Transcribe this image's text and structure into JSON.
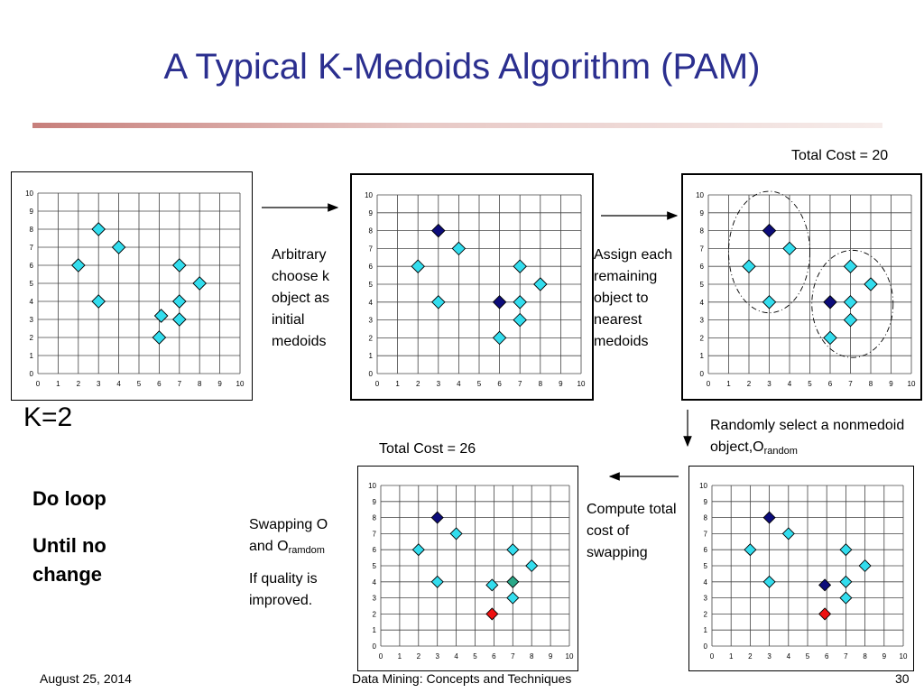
{
  "title": "A Typical K-Medoids Algorithm (PAM)",
  "k_label": "K=2",
  "steps": {
    "arbitrary": "Arbitrary choose k object as initial medoids",
    "assign": "Assign each remaining object to nearest medoids",
    "randomly_prefix": "Randomly select a nonmedoid object,O",
    "randomly_sub": "random",
    "compute": "Compute total cost of swapping",
    "swap_prefix": "Swapping O and O",
    "swap_sub": "ramdom",
    "quality": "If quality is improved."
  },
  "costs": {
    "top": "Total Cost = 20",
    "bottom": "Total Cost = 26"
  },
  "loop": {
    "do": "Do loop",
    "until": "Until no change"
  },
  "footer": {
    "date": "August 25, 2014",
    "course": "Data Mining: Concepts and Techniques",
    "page": "30"
  },
  "colors": {
    "object": "#33ddee",
    "medoid": "#0c0c7a",
    "swap_candidate": "#ee1111",
    "former_medoid": "#2aa888"
  },
  "chart_data": [
    {
      "type": "scatter",
      "id": "initial-data",
      "xlim": [
        0,
        10
      ],
      "ylim": [
        0,
        10
      ],
      "grid": true,
      "ticks": [
        "0",
        "1",
        "2",
        "3",
        "4",
        "5",
        "6",
        "7",
        "8",
        "9",
        "10"
      ],
      "points": [
        {
          "x": 2,
          "y": 6,
          "role": "object"
        },
        {
          "x": 3,
          "y": 8,
          "role": "object"
        },
        {
          "x": 3,
          "y": 4,
          "role": "object"
        },
        {
          "x": 4,
          "y": 7,
          "role": "object"
        },
        {
          "x": 6,
          "y": 2,
          "role": "object"
        },
        {
          "x": 6.1,
          "y": 3.2,
          "role": "object"
        },
        {
          "x": 7,
          "y": 6,
          "role": "object"
        },
        {
          "x": 7,
          "y": 4,
          "role": "object"
        },
        {
          "x": 7,
          "y": 3,
          "role": "object"
        },
        {
          "x": 8,
          "y": 5,
          "role": "object"
        }
      ]
    },
    {
      "type": "scatter",
      "id": "initial-medoids",
      "xlim": [
        0,
        10
      ],
      "ylim": [
        0,
        10
      ],
      "grid": true,
      "ticks": [
        "0",
        "1",
        "2",
        "3",
        "4",
        "5",
        "6",
        "7",
        "8",
        "9",
        "10"
      ],
      "points": [
        {
          "x": 2,
          "y": 6,
          "role": "object"
        },
        {
          "x": 3,
          "y": 8,
          "role": "medoid"
        },
        {
          "x": 3,
          "y": 4,
          "role": "object"
        },
        {
          "x": 4,
          "y": 7,
          "role": "object"
        },
        {
          "x": 6,
          "y": 4,
          "role": "medoid"
        },
        {
          "x": 6,
          "y": 2,
          "role": "object"
        },
        {
          "x": 7,
          "y": 6,
          "role": "object"
        },
        {
          "x": 7,
          "y": 4,
          "role": "object"
        },
        {
          "x": 7,
          "y": 3,
          "role": "object"
        },
        {
          "x": 8,
          "y": 5,
          "role": "object"
        }
      ]
    },
    {
      "type": "scatter",
      "id": "assigned-clusters",
      "xlim": [
        0,
        10
      ],
      "ylim": [
        0,
        10
      ],
      "grid": true,
      "ticks": [
        "0",
        "1",
        "2",
        "3",
        "4",
        "5",
        "6",
        "7",
        "8",
        "9",
        "10"
      ],
      "clusters": [
        {
          "cx": 3,
          "cy": 6.8,
          "rx": 2.0,
          "ry": 3.4
        },
        {
          "cx": 7.1,
          "cy": 3.9,
          "rx": 2.0,
          "ry": 3.0
        }
      ],
      "points": [
        {
          "x": 2,
          "y": 6,
          "role": "object"
        },
        {
          "x": 3,
          "y": 8,
          "role": "medoid"
        },
        {
          "x": 3,
          "y": 4,
          "role": "object"
        },
        {
          "x": 4,
          "y": 7,
          "role": "object"
        },
        {
          "x": 6,
          "y": 4,
          "role": "medoid"
        },
        {
          "x": 6,
          "y": 2,
          "role": "object"
        },
        {
          "x": 7,
          "y": 6,
          "role": "object"
        },
        {
          "x": 7,
          "y": 4,
          "role": "object"
        },
        {
          "x": 7,
          "y": 3,
          "role": "object"
        },
        {
          "x": 8,
          "y": 5,
          "role": "object"
        }
      ]
    },
    {
      "type": "scatter",
      "id": "random-nonmedoid",
      "xlim": [
        0,
        10
      ],
      "ylim": [
        0,
        10
      ],
      "grid": true,
      "ticks": [
        "0",
        "1",
        "2",
        "3",
        "4",
        "5",
        "6",
        "7",
        "8",
        "9",
        "10"
      ],
      "points": [
        {
          "x": 2,
          "y": 6,
          "role": "object"
        },
        {
          "x": 3,
          "y": 8,
          "role": "medoid"
        },
        {
          "x": 3,
          "y": 4,
          "role": "object"
        },
        {
          "x": 4,
          "y": 7,
          "role": "object"
        },
        {
          "x": 5.9,
          "y": 3.8,
          "role": "medoid"
        },
        {
          "x": 5.9,
          "y": 2,
          "role": "swap_candidate"
        },
        {
          "x": 7,
          "y": 6,
          "role": "object"
        },
        {
          "x": 7,
          "y": 4,
          "role": "object"
        },
        {
          "x": 7,
          "y": 3,
          "role": "object"
        },
        {
          "x": 8,
          "y": 5,
          "role": "object"
        }
      ]
    },
    {
      "type": "scatter",
      "id": "after-swap",
      "xlim": [
        0,
        10
      ],
      "ylim": [
        0,
        10
      ],
      "grid": true,
      "ticks": [
        "0",
        "1",
        "2",
        "3",
        "4",
        "5",
        "6",
        "7",
        "8",
        "9",
        "10"
      ],
      "points": [
        {
          "x": 2,
          "y": 6,
          "role": "object"
        },
        {
          "x": 3,
          "y": 8,
          "role": "medoid"
        },
        {
          "x": 3,
          "y": 4,
          "role": "object"
        },
        {
          "x": 4,
          "y": 7,
          "role": "object"
        },
        {
          "x": 5.9,
          "y": 3.8,
          "role": "object"
        },
        {
          "x": 5.9,
          "y": 2,
          "role": "swap_candidate"
        },
        {
          "x": 7,
          "y": 6,
          "role": "object"
        },
        {
          "x": 7,
          "y": 4,
          "role": "former_medoid"
        },
        {
          "x": 7,
          "y": 3,
          "role": "object"
        },
        {
          "x": 8,
          "y": 5,
          "role": "object"
        }
      ]
    }
  ]
}
